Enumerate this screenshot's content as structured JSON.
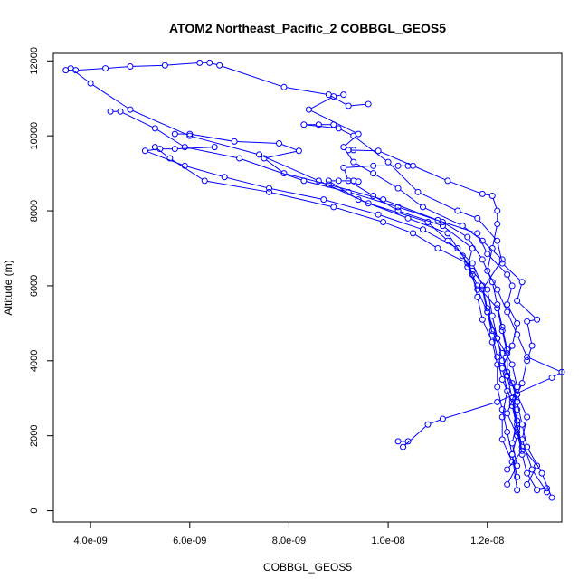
{
  "chart_data": {
    "type": "scatter",
    "title": "ATOM2 Northeast_Pacific_2 COBBGL_GEOS5",
    "xlabel": "COBBGL_GEOS5",
    "ylabel": "Altitude (m)",
    "xlim": [
      3.25e-09,
      1.35e-08
    ],
    "ylim": [
      -300,
      12200
    ],
    "x_ticks": [
      {
        "value": 4e-09,
        "label": "4.0e-09"
      },
      {
        "value": 6e-09,
        "label": "6.0e-09"
      },
      {
        "value": 8e-09,
        "label": "8.0e-09"
      },
      {
        "value": 1e-08,
        "label": "1.0e-08"
      },
      {
        "value": 1.2e-08,
        "label": "1.2e-08"
      }
    ],
    "y_ticks": [
      {
        "value": 0,
        "label": "0"
      },
      {
        "value": 2000,
        "label": "2000"
      },
      {
        "value": 4000,
        "label": "4000"
      },
      {
        "value": 6000,
        "label": "6000"
      },
      {
        "value": 8000,
        "label": "8000"
      },
      {
        "value": 10000,
        "label": "10000"
      },
      {
        "value": 12000,
        "label": "12000"
      }
    ],
    "grid": false,
    "legend": "none",
    "series_color": "#0000ff",
    "series": [
      {
        "points": [
          [
            1.24e-08,
            700
          ],
          [
            1.26e-08,
            1200
          ],
          [
            1.25e-08,
            1800
          ],
          [
            1.26e-08,
            2400
          ],
          [
            1.25e-08,
            3000
          ],
          [
            1.24e-08,
            3600
          ],
          [
            1.23e-08,
            4200
          ],
          [
            1.21e-08,
            4800
          ],
          [
            1.2e-08,
            5400
          ],
          [
            1.19e-08,
            6000
          ],
          [
            1.17e-08,
            6600
          ],
          [
            1.12e-08,
            7200
          ],
          [
            1.08e-08,
            7700
          ],
          [
            9.6e-09,
            8200
          ],
          [
            8.6e-09,
            8800
          ],
          [
            7.4e-09,
            9500
          ],
          [
            6e-09,
            10000
          ],
          [
            4.8e-09,
            10700
          ],
          [
            4e-09,
            11400
          ],
          [
            3.6e-09,
            11800
          ],
          [
            3.5e-09,
            11750
          ],
          [
            3.7e-09,
            11750
          ],
          [
            4.3e-09,
            11800
          ],
          [
            4.8e-09,
            11850
          ],
          [
            5.5e-09,
            11880
          ],
          [
            6.2e-09,
            11950
          ],
          [
            6.4e-09,
            11950
          ],
          [
            6.6e-09,
            11880
          ],
          [
            7.9e-09,
            11300
          ],
          [
            8.8e-09,
            11100
          ],
          [
            9.2e-09,
            10800
          ],
          [
            9.6e-09,
            10850
          ]
        ]
      },
      {
        "points": [
          [
            1.33e-08,
            350
          ],
          [
            1.31e-08,
            1000
          ],
          [
            1.28e-08,
            1700
          ],
          [
            1.27e-08,
            2300
          ],
          [
            1.26e-08,
            2900
          ],
          [
            1.25e-08,
            3400
          ],
          [
            1.23e-08,
            4000
          ],
          [
            1.22e-08,
            4600
          ],
          [
            1.21e-08,
            5200
          ],
          [
            1.2e-08,
            5900
          ],
          [
            1.17e-08,
            6400
          ],
          [
            1.14e-08,
            7000
          ],
          [
            1.07e-08,
            7500
          ],
          [
            9.8e-09,
            7900
          ],
          [
            8.7e-09,
            8300
          ],
          [
            7.6e-09,
            8600
          ],
          [
            6.7e-09,
            8900
          ],
          [
            5.9e-09,
            9200
          ],
          [
            5.1e-09,
            9600
          ],
          [
            5.4e-09,
            9650
          ],
          [
            5.7e-09,
            9650
          ],
          [
            6.5e-09,
            9700
          ]
        ]
      },
      {
        "points": [
          [
            1.32e-08,
            500
          ],
          [
            1.29e-08,
            1100
          ],
          [
            1.27e-08,
            1900
          ],
          [
            1.28e-08,
            2500
          ],
          [
            1.26e-08,
            3100
          ],
          [
            1.24e-08,
            3700
          ],
          [
            1.24e-08,
            4300
          ],
          [
            1.23e-08,
            4900
          ],
          [
            1.22e-08,
            5500
          ],
          [
            1.21e-08,
            6100
          ],
          [
            1.19e-08,
            6700
          ],
          [
            1.16e-08,
            7300
          ],
          [
            1.11e-08,
            7700
          ],
          [
            1.02e-08,
            8100
          ],
          [
            9.2e-09,
            8500
          ],
          [
            8.3e-09,
            8800
          ],
          [
            7e-09,
            9400
          ],
          [
            5.9e-09,
            9700
          ],
          [
            5.3e-09,
            10200
          ],
          [
            4.6e-09,
            10650
          ],
          [
            4.4e-09,
            10650
          ]
        ]
      },
      {
        "points": [
          [
            1.26e-08,
            900
          ],
          [
            1.25e-08,
            1500
          ],
          [
            1.24e-08,
            2100
          ],
          [
            1.23e-08,
            2700
          ],
          [
            1.22e-08,
            3300
          ],
          [
            1.22e-08,
            3900
          ],
          [
            1.21e-08,
            4500
          ],
          [
            1.19e-08,
            5100
          ],
          [
            1.18e-08,
            5700
          ],
          [
            1.17e-08,
            6300
          ],
          [
            1.15e-08,
            6800
          ],
          [
            1.12e-08,
            7400
          ],
          [
            1.04e-08,
            7800
          ],
          [
            9.4e-09,
            8300
          ],
          [
            8.8e-09,
            8800
          ],
          [
            9e-09,
            8800
          ],
          [
            9.3e-09,
            8800
          ],
          [
            9.4e-09,
            8780
          ]
        ]
      },
      {
        "points": [
          [
            1.02e-08,
            1850
          ],
          [
            1.04e-08,
            1850
          ],
          [
            1.03e-08,
            1700
          ],
          [
            1.08e-08,
            2300
          ],
          [
            1.11e-08,
            2450
          ],
          [
            1.22e-08,
            2900
          ],
          [
            1.33e-08,
            3550
          ],
          [
            1.35e-08,
            3700
          ],
          [
            1.28e-08,
            4100
          ],
          [
            1.26e-08,
            4700
          ],
          [
            1.24e-08,
            5300
          ],
          [
            1.22e-08,
            5900
          ],
          [
            1.2e-08,
            6400
          ],
          [
            1.21e-08,
            7000
          ],
          [
            1.22e-08,
            7650
          ],
          [
            1.22e-08,
            8000
          ],
          [
            1.21e-08,
            8400
          ],
          [
            1.19e-08,
            8450
          ],
          [
            1.12e-08,
            8800
          ],
          [
            1.05e-08,
            9200
          ],
          [
            9.8e-09,
            9600
          ],
          [
            9.2e-09,
            9620
          ],
          [
            9.3e-09,
            9620
          ]
        ]
      },
      {
        "points": [
          [
            1.24e-08,
            1100
          ],
          [
            1.27e-08,
            1600
          ],
          [
            1.26e-08,
            2200
          ],
          [
            1.25e-08,
            2800
          ],
          [
            1.27e-08,
            3400
          ],
          [
            1.28e-08,
            4000
          ],
          [
            1.29e-08,
            4400
          ],
          [
            1.28e-08,
            5050
          ],
          [
            1.3e-08,
            5100
          ],
          [
            1.26e-08,
            5600
          ],
          [
            1.27e-08,
            6100
          ],
          [
            1.23e-08,
            6600
          ],
          [
            1.22e-08,
            7200
          ],
          [
            1.18e-08,
            7800
          ],
          [
            1.14e-08,
            8000
          ],
          [
            1.06e-08,
            8500
          ],
          [
            1e-08,
            9300
          ],
          [
            9.3e-09,
            10000
          ],
          [
            9e-09,
            10200
          ],
          [
            8.3e-09,
            10300
          ],
          [
            8.6e-09,
            10300
          ],
          [
            8.9e-09,
            10300
          ]
        ]
      },
      {
        "points": [
          [
            1.25e-08,
            1300
          ],
          [
            1.23e-08,
            1900
          ],
          [
            1.23e-08,
            2500
          ],
          [
            1.24e-08,
            3200
          ],
          [
            1.23e-08,
            3800
          ],
          [
            1.25e-08,
            4400
          ],
          [
            1.26e-08,
            5000
          ],
          [
            1.24e-08,
            5500
          ],
          [
            1.25e-08,
            6000
          ],
          [
            1.24e-08,
            6300
          ],
          [
            1.2e-08,
            6850
          ],
          [
            1.18e-08,
            7400
          ],
          [
            1.1e-08,
            7750
          ],
          [
            9.9e-09,
            8300
          ],
          [
            8.8e-09,
            8700
          ],
          [
            7.9e-09,
            9000
          ],
          [
            7.5e-09,
            9400
          ],
          [
            8.2e-09,
            9600
          ],
          [
            7.8e-09,
            9800
          ],
          [
            6.9e-09,
            9850
          ],
          [
            6e-09,
            10050
          ],
          [
            5.7e-09,
            10050
          ]
        ]
      },
      {
        "points": [
          [
            1.26e-08,
            550
          ],
          [
            1.25e-08,
            1500
          ],
          [
            1.26e-08,
            2000
          ],
          [
            1.24e-08,
            2600
          ],
          [
            1.26e-08,
            3300
          ],
          [
            1.25e-08,
            3900
          ],
          [
            1.22e-08,
            4600
          ],
          [
            1.2e-08,
            5300
          ],
          [
            1.18e-08,
            5900
          ],
          [
            1.16e-08,
            6500
          ],
          [
            1.17e-08,
            7000
          ],
          [
            1.11e-08,
            7600
          ],
          [
            1.02e-08,
            8000
          ],
          [
            9.7e-09,
            8400
          ],
          [
            9.2e-09,
            8800
          ],
          [
            9.1e-09,
            9150
          ],
          [
            9.7e-09,
            9200
          ],
          [
            1.02e-08,
            9200
          ],
          [
            1.04e-08,
            9200
          ]
        ]
      },
      {
        "points": [
          [
            1.28e-08,
            700
          ],
          [
            1.3e-08,
            1200
          ],
          [
            1.27e-08,
            1700
          ],
          [
            1.26e-08,
            2300
          ],
          [
            1.25e-08,
            2900
          ],
          [
            1.23e-08,
            3500
          ],
          [
            1.22e-08,
            4100
          ],
          [
            1.21e-08,
            4700
          ],
          [
            1.2e-08,
            5300
          ],
          [
            1.19e-08,
            5900
          ],
          [
            1.23e-08,
            6700
          ],
          [
            1.19e-08,
            7200
          ],
          [
            1.15e-08,
            7600
          ],
          [
            1.07e-08,
            8100
          ],
          [
            1.02e-08,
            8600
          ],
          [
            9.7e-09,
            9000
          ],
          [
            9.3e-09,
            9300
          ],
          [
            9.1e-09,
            9700
          ],
          [
            9.4e-09,
            10050
          ],
          [
            8.4e-09,
            10700
          ],
          [
            8.9e-09,
            11050
          ],
          [
            9.1e-09,
            11100
          ]
        ]
      },
      {
        "points": [
          [
            1.32e-08,
            600
          ],
          [
            1.3e-08,
            550
          ],
          [
            1.28e-08,
            1000
          ],
          [
            1.27e-08,
            1500
          ],
          [
            1.26e-08,
            2100
          ],
          [
            1.26e-08,
            2700
          ],
          [
            1.26e-08,
            3100
          ],
          [
            1.24e-08,
            3600
          ],
          [
            1.24e-08,
            4200
          ],
          [
            1.23e-08,
            4800
          ],
          [
            1.22e-08,
            5400
          ],
          [
            1.18e-08,
            6000
          ],
          [
            1.16e-08,
            6600
          ],
          [
            1.1e-08,
            7000
          ],
          [
            1.05e-08,
            7400
          ],
          [
            9.9e-09,
            7700
          ],
          [
            8.9e-09,
            8100
          ],
          [
            7.6e-09,
            8500
          ],
          [
            6.3e-09,
            8800
          ],
          [
            5.6e-09,
            9400
          ],
          [
            5.3e-09,
            9700
          ]
        ]
      }
    ]
  }
}
